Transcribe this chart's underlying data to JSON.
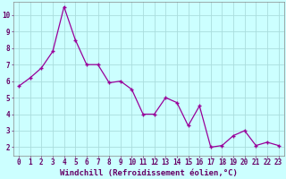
{
  "x": [
    0,
    1,
    2,
    3,
    4,
    5,
    6,
    7,
    8,
    9,
    10,
    11,
    12,
    13,
    14,
    15,
    16,
    17,
    18,
    19,
    20,
    21,
    22,
    23
  ],
  "y": [
    5.7,
    6.2,
    6.8,
    7.8,
    10.5,
    8.5,
    7.0,
    7.0,
    5.9,
    6.0,
    5.5,
    4.0,
    4.0,
    5.0,
    4.7,
    3.3,
    4.5,
    2.0,
    2.1,
    2.7,
    3.0,
    2.1,
    2.3,
    2.1
  ],
  "xlabel": "Windchill (Refroidissement éolien,°C)",
  "line_color": "#990099",
  "marker_color": "#990099",
  "bg_color": "#ccffff",
  "grid_color": "#aadddd",
  "axis_label_color": "#660066",
  "tick_label_color": "#660066",
  "ylim": [
    1.5,
    10.8
  ],
  "xlim": [
    -0.5,
    23.5
  ],
  "yticks": [
    2,
    3,
    4,
    5,
    6,
    7,
    8,
    9,
    10
  ],
  "xticks": [
    0,
    1,
    2,
    3,
    4,
    5,
    6,
    7,
    8,
    9,
    10,
    11,
    12,
    13,
    14,
    15,
    16,
    17,
    18,
    19,
    20,
    21,
    22,
    23
  ],
  "xlabel_fontsize": 6.5,
  "tick_fontsize": 5.5
}
